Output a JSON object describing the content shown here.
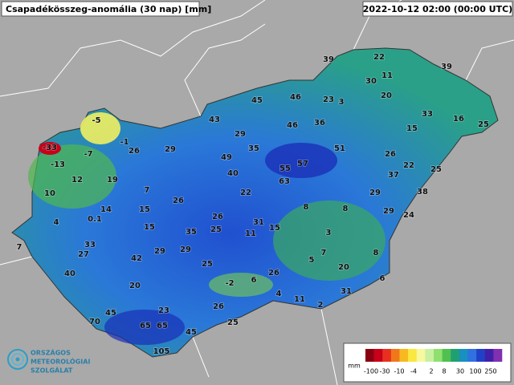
{
  "header": {
    "title": "Csapadékösszeg-anomália (30 nap) [mm]",
    "timestamp": "2022-10-12 02:00 (00:00 UTC)"
  },
  "stations": [
    -5,
    -1,
    -33,
    -7,
    -13,
    26,
    29,
    12,
    19,
    10,
    7,
    26,
    14,
    15,
    4,
    0.1,
    7,
    15,
    33,
    27,
    35,
    42,
    29,
    29,
    40,
    20,
    25,
    45,
    23,
    70,
    65,
    65,
    45,
    105,
    26,
    25,
    -2,
    6,
    26,
    4,
    11,
    2,
    31,
    6,
    20,
    8,
    5,
    7,
    3,
    8,
    8,
    29,
    24,
    15,
    31,
    11,
    26,
    25,
    22,
    29,
    38,
    37,
    22,
    25,
    26,
    55,
    63,
    57,
    51,
    49,
    40,
    35,
    29,
    43,
    45,
    46,
    46,
    36,
    23,
    3,
    39,
    22,
    11,
    30,
    20,
    39,
    33,
    15,
    16,
    25
  ],
  "legend": {
    "unit": "mm",
    "labels": [
      "-100",
      "-30",
      "-10",
      "-4",
      "2",
      "8",
      "30",
      "100",
      "250"
    ],
    "colors": [
      "#8b0010",
      "#c8001a",
      "#e83020",
      "#f07818",
      "#f8b820",
      "#f8e840",
      "#f8f8a0",
      "#c8f0a0",
      "#90e070",
      "#50c050",
      "#20a070",
      "#1890c0",
      "#3070e0",
      "#2040c8",
      "#4020a8",
      "#8030b0"
    ]
  },
  "logo": {
    "lines": [
      "ORSZÁGOS",
      "METEOROLÓGIAI",
      "SZOLGÁLAT"
    ]
  }
}
